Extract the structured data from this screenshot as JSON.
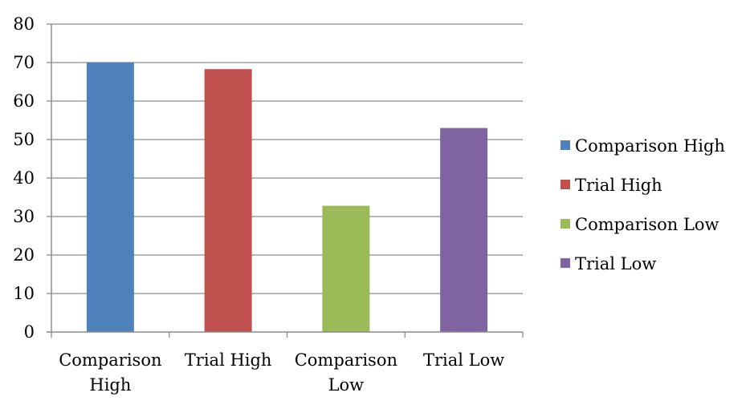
{
  "chart_data": {
    "type": "bar",
    "title": "",
    "xlabel": "",
    "ylabel": "",
    "categories": [
      "Comparison High",
      "Trial High",
      "Comparison Low",
      "Trial Low"
    ],
    "category_label_lines": [
      [
        "Comparison",
        "High"
      ],
      [
        "Trial High"
      ],
      [
        "Comparison",
        "Low"
      ],
      [
        "Trial Low"
      ]
    ],
    "values": [
      70,
      68.3,
      32.8,
      53
    ],
    "ylim": [
      0,
      80
    ],
    "yticks": [
      0,
      10,
      20,
      30,
      40,
      50,
      60,
      70,
      80
    ],
    "grid": true,
    "legend_position": "right",
    "colors": [
      "#4F81BD",
      "#C0504D",
      "#9BBB59",
      "#8064A2"
    ],
    "legend": [
      "Comparison High",
      "Trial High",
      "Comparison Low",
      "Trial Low"
    ]
  }
}
